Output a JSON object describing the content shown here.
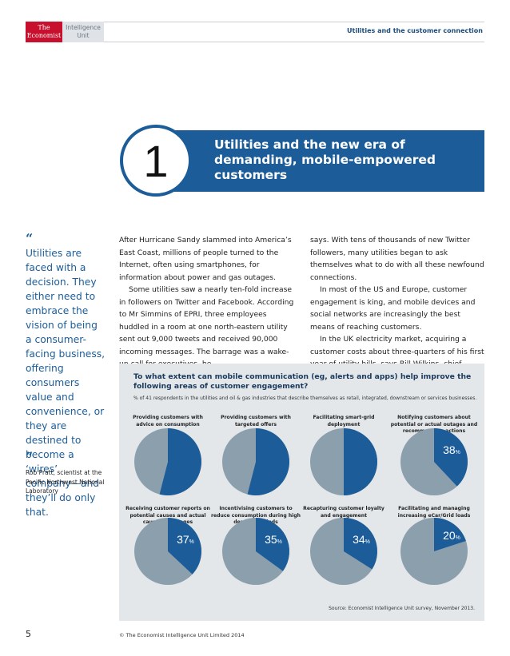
{
  "header": {
    "economist_line1": "The",
    "economist_line2": "Economist",
    "eiu_line1": "Intelligence",
    "eiu_line2": "Unit",
    "report_title": "Utilities and the customer connection"
  },
  "chapter": {
    "number": "1",
    "title": "Utilities and the new era of demanding, mobile-empowered customers"
  },
  "pull_quote": {
    "open_mark": "“",
    "close_mark": "”",
    "text": "Utilities are faced with a decision. They either need to embrace the vision of being a consumer-facing business, offering consumers value and convenience, or they are destined to become a ‘wires’ company—and they’ll do only that.",
    "attribution": "Rob Pratt, scientist at the Pacific Northwest National Laboratory"
  },
  "body": {
    "col1_p1": "After Hurricane Sandy slammed into America’s East Coast, millions of people turned to the Internet, often using smartphones, for information about power and gas outages.",
    "col1_p2": "Some utilities saw a nearly ten-fold increase in followers on Twitter and Facebook. According to Mr Simmins of EPRI, three employees huddled in a room at one north-eastern utility sent out 9,000 tweets and received 90,000 incoming messages. The barrage was a wake-up call for executives, he",
    "col2_p1": "says. With tens of thousands of new Twitter followers, many utilities began to ask themselves what to do with all these newfound connections.",
    "col2_p2": "In most of the US and Europe, customer engagement is king, and mobile devices and social networks are increasingly the best means of reaching customers.",
    "col2_p3": "In the UK electricity market, acquiring a customer costs about three-quarters of his first year of utility bills, says Bill Wilkins, chief"
  },
  "figure": {
    "question": "To what extent can mobile communication (eg, alerts and apps) help improve the following areas of customer engagement?",
    "subtitle": "% of 41 respondents in the utilities and oil & gas industries that describe themselves as retail, integrated, downstream or services businesses.",
    "source": "Source: Economist Intelligence Unit survey, November 2013."
  },
  "chart_data": {
    "type": "pie",
    "title": "To what extent can mobile communication (eg, alerts and apps) help improve the following areas of customer engagement?",
    "unit": "%",
    "colors": {
      "highlight": "#1c5d99",
      "rest": "#8c9fad"
    },
    "pies": [
      {
        "label": "Providing customers with advice on consumption",
        "value": 54
      },
      {
        "label": "Providing customers with targeted offers",
        "value": 54
      },
      {
        "label": "Facilitating smart-grid deployment",
        "value": 50
      },
      {
        "label": "Notifying customers about potential or actual outages and recommending actions",
        "value": 38
      },
      {
        "label": "Receiving customer reports on potential causes and actual causes of outages",
        "value": 37
      },
      {
        "label": "Incentivising customers to reduce consumption during high demand periods",
        "value": 35
      },
      {
        "label": "Recapturing customer loyalty and engagement",
        "value": 34
      },
      {
        "label": "Facilitating and managing increasing eCar/Grid loads",
        "value": 20
      }
    ]
  },
  "footer": {
    "page_number": "5",
    "copyright": "© The Economist Intelligence Unit Limited 2014"
  }
}
